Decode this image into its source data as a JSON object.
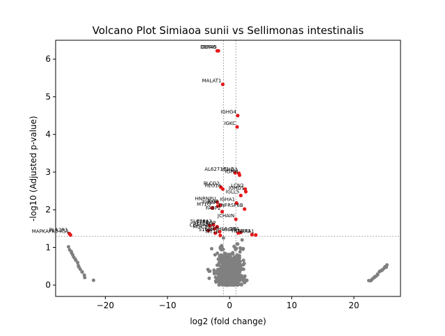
{
  "chart_data": {
    "type": "scatter",
    "title": "Volcano Plot Simiaoa sunii vs Sellimonas intestinalis",
    "xlabel": "log2 (fold change)",
    "ylabel": "-log10 (Adjusted p-value)",
    "xlim": [
      -28,
      27.5
    ],
    "ylim": [
      -0.3,
      6.5
    ],
    "xticks": [
      -20,
      -10,
      0,
      10,
      20
    ],
    "yticks": [
      0,
      1,
      2,
      3,
      4,
      5,
      6
    ],
    "xtick_labels": [
      "−20",
      "−10",
      "0",
      "10",
      "20"
    ],
    "ytick_labels": [
      "0",
      "1",
      "2",
      "3",
      "4",
      "5",
      "6"
    ],
    "threshold_y": 1.3,
    "threshold_x": [
      -1,
      1
    ],
    "grid": false,
    "colors": {
      "significant": "#e41a1c",
      "nonsignificant": "#808080",
      "threshold": "#808080"
    },
    "significant": [
      {
        "label": "DEFA6",
        "x": -2.0,
        "y": 6.22
      },
      {
        "label": "DEFA5",
        "x": -1.8,
        "y": 6.22
      },
      {
        "label": "MALAT1",
        "x": -1.1,
        "y": 5.33
      },
      {
        "label": "IGHG4",
        "x": 1.3,
        "y": 4.5
      },
      {
        "label": "IGKC",
        "x": 1.2,
        "y": 4.2
      },
      {
        "label": "AL627171.2",
        "x": 0.9,
        "y": 2.98
      },
      {
        "label": "IGHG3",
        "x": 1.5,
        "y": 2.97
      },
      {
        "label": "IGHM",
        "x": 1.6,
        "y": 2.92
      },
      {
        "label": "PLCG2",
        "x": -1.4,
        "y": 2.6
      },
      {
        "label": "REG1A",
        "x": -1.1,
        "y": 2.55
      },
      {
        "label": "LCN2",
        "x": 2.5,
        "y": 2.55
      },
      {
        "label": "IGHG1",
        "x": 2.6,
        "y": 2.48
      },
      {
        "label": "IGLL5",
        "x": 1.8,
        "y": 2.38
      },
      {
        "label": "HNRNPU",
        "x": -2.0,
        "y": 2.2
      },
      {
        "label": "IGHA1",
        "x": 1.1,
        "y": 2.18
      },
      {
        "label": "PIGR",
        "x": -1.5,
        "y": 2.12
      },
      {
        "label": "TXNIP",
        "x": -1.9,
        "y": 2.1
      },
      {
        "label": "MT1G",
        "x": -2.8,
        "y": 2.05
      },
      {
        "label": "TNFRSF6B",
        "x": 2.4,
        "y": 2.02
      },
      {
        "label": "FABP2",
        "x": -1.2,
        "y": 1.95
      },
      {
        "label": "JCHAIN",
        "x": 1.0,
        "y": 1.75
      },
      {
        "label": "SLC26A3",
        "x": -2.6,
        "y": 1.6
      },
      {
        "label": "TFF3",
        "x": -3.2,
        "y": 1.58
      },
      {
        "label": "SELENOP",
        "x": -2.0,
        "y": 1.55
      },
      {
        "label": "CEACAM7",
        "x": -2.4,
        "y": 1.5
      },
      {
        "label": "MUC2",
        "x": -3.4,
        "y": 1.45
      },
      {
        "label": "ZG16",
        "x": -1.6,
        "y": 1.42
      },
      {
        "label": "S100P",
        "x": -2.3,
        "y": 1.38
      },
      {
        "label": "HLA-DRA",
        "x": 1.8,
        "y": 1.4
      },
      {
        "label": "IGLC2",
        "x": 1.4,
        "y": 1.38
      },
      {
        "label": "PLA2R1",
        "x": -25.8,
        "y": 1.37
      },
      {
        "label": "MAPKAPK5-AS1",
        "x": -25.6,
        "y": 1.33
      },
      {
        "label": "TNFAIP3",
        "x": 3.6,
        "y": 1.34
      },
      {
        "label": "NR4A1",
        "x": 4.2,
        "y": 1.33
      },
      {
        "label": "MT1E",
        "x": -1.5,
        "y": 1.32
      }
    ]
  }
}
